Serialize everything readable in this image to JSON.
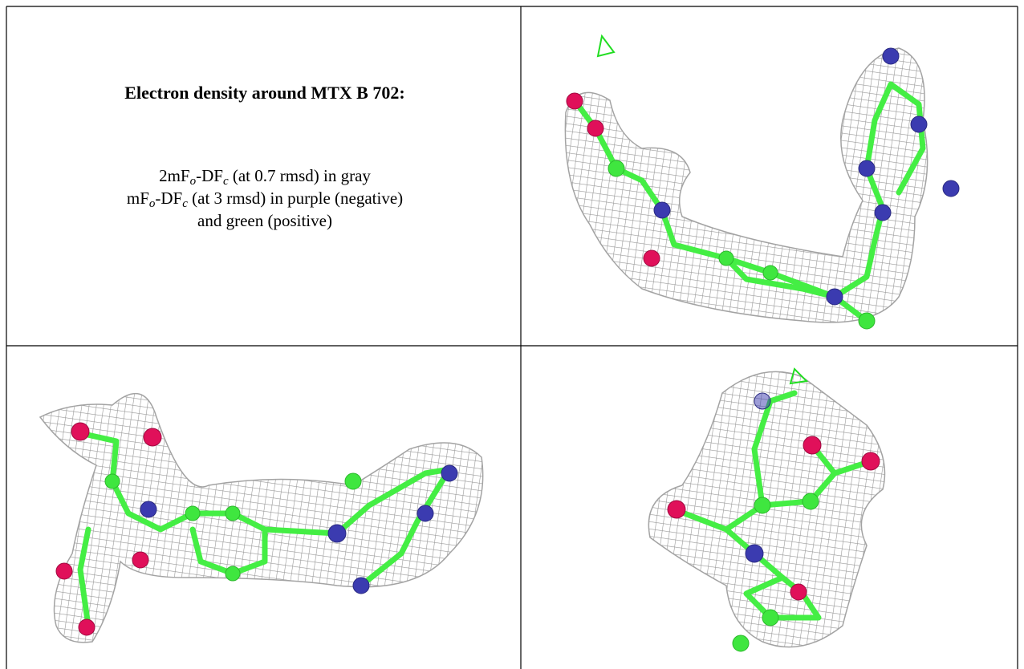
{
  "panel": {
    "title": "Electron density around MTX B 702:",
    "lines": [
      [
        "2mF",
        "o",
        "-DF",
        "c",
        " (at 0.7 rmsd) in gray"
      ],
      [
        "mF",
        "o",
        "-DF",
        "c",
        " (at 3 rmsd) in purple (negative)"
      ],
      [
        "and green (positive)"
      ]
    ]
  }
}
